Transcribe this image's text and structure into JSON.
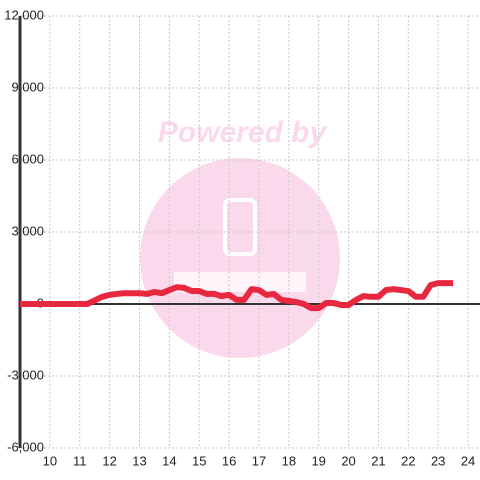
{
  "chart_data": {
    "type": "line",
    "watermark": "Powered by",
    "x": [
      9,
      9.5,
      10,
      10.5,
      11,
      11.25,
      11.5,
      11.75,
      12,
      12.25,
      12.5,
      13,
      13.25,
      13.5,
      13.75,
      14,
      14.25,
      14.5,
      14.75,
      15,
      15.25,
      15.5,
      15.75,
      16,
      16.25,
      16.5,
      16.75,
      17,
      17.25,
      17.5,
      17.75,
      18,
      18.25,
      18.5,
      18.75,
      19,
      19.25,
      19.5,
      19.75,
      20,
      20.25,
      20.5,
      20.75,
      21,
      21.25,
      21.5,
      21.75,
      22,
      22.25,
      22.5,
      22.75,
      23,
      23.25,
      23.5
    ],
    "series": [
      {
        "color": "#e8283f",
        "values": [
          0,
          0,
          0,
          0,
          0,
          0,
          150,
          300,
          380,
          420,
          450,
          450,
          420,
          500,
          450,
          580,
          700,
          670,
          540,
          540,
          420,
          420,
          330,
          380,
          170,
          170,
          620,
          580,
          380,
          420,
          170,
          130,
          80,
          0,
          -170,
          -170,
          40,
          40,
          -40,
          -40,
          170,
          330,
          300,
          300,
          580,
          620,
          580,
          540,
          300,
          300,
          790,
          870,
          870,
          870
        ]
      }
    ],
    "xlim": [
      9,
      24.4
    ],
    "xticks": [
      10,
      11,
      12,
      13,
      14,
      15,
      16,
      17,
      18,
      19,
      20,
      21,
      22,
      23,
      24
    ],
    "ylim": [
      -6000,
      12000
    ],
    "yticks": [
      {
        "value": -6000,
        "label": "-6,000"
      },
      {
        "value": -3000,
        "label": "-3,000"
      },
      0,
      {
        "value": 3000,
        "label": "3,000"
      },
      {
        "value": 6000,
        "label": "6,000"
      },
      {
        "value": 9000,
        "label": "9,000"
      },
      {
        "value": 12000,
        "label": "12,000"
      }
    ],
    "grid": true
  }
}
